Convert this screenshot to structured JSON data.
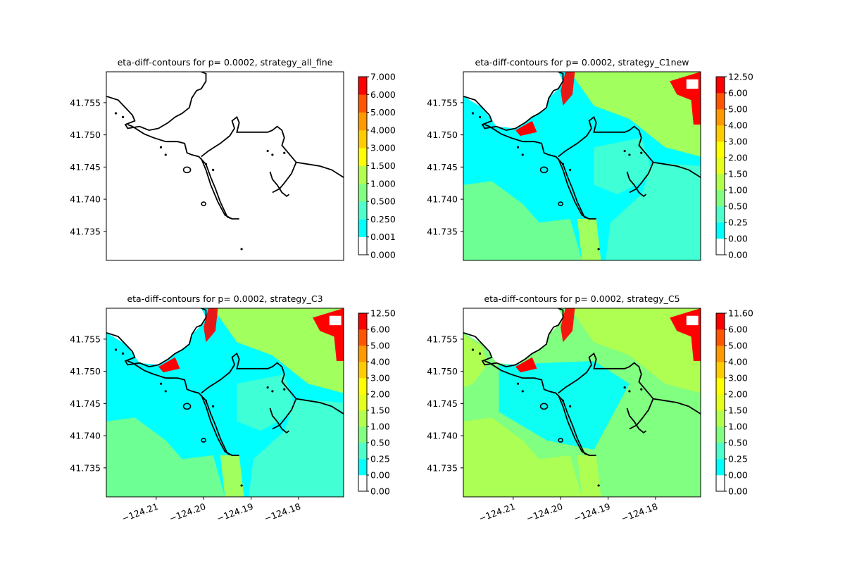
{
  "figure": {
    "background": "#ffffff",
    "coast_color": "#000000",
    "axes_color": "#000000"
  },
  "chart_data": [
    {
      "type": "heatmap",
      "title": "eta-diff-contours for p= 0.0002, strategy_all_fine",
      "xlim": [
        -124.2205,
        -124.1705
      ],
      "ylim": [
        41.7305,
        41.7598
      ],
      "yticks": [
        41.735,
        41.74,
        41.745,
        41.75,
        41.755
      ],
      "ytick_labels": [
        "41.735",
        "41.740",
        "41.745",
        "41.750",
        "41.755"
      ],
      "xticks": [],
      "xtick_labels": [],
      "fill": "none",
      "colorbar": {
        "labels": [
          "0.000",
          "0.001",
          "0.250",
          "0.500",
          "1.000",
          "1.500",
          "3.000",
          "4.000",
          "5.000",
          "6.000",
          "7.000"
        ],
        "colors": [
          "#ffffff",
          "#00ffff",
          "#4dffcc",
          "#80ff80",
          "#b3ff4d",
          "#ffff00",
          "#ffcc00",
          "#ff9900",
          "#ff5500",
          "#ff0000"
        ]
      }
    },
    {
      "type": "heatmap",
      "title": "eta-diff-contours for p= 0.0002, strategy_C1new",
      "xlim": [
        -124.2205,
        -124.1705
      ],
      "ylim": [
        41.7305,
        41.7598
      ],
      "yticks": [
        41.735,
        41.74,
        41.745,
        41.75,
        41.755
      ],
      "ytick_labels": [
        "41.735",
        "41.740",
        "41.745",
        "41.750",
        "41.755"
      ],
      "xticks": [],
      "xtick_labels": [],
      "fill": "c1",
      "colorbar": {
        "labels": [
          "0.00",
          "0.00",
          "0.25",
          "0.50",
          "1.00",
          "1.50",
          "2.00",
          "3.00",
          "4.00",
          "5.00",
          "6.00",
          "12.50"
        ],
        "colors": [
          "#ffffff",
          "#00ffff",
          "#4dffcc",
          "#80ff80",
          "#b3ff4d",
          "#e6ff1a",
          "#ffff00",
          "#ffcc00",
          "#ff9900",
          "#ff5500",
          "#ff0000"
        ]
      }
    },
    {
      "type": "heatmap",
      "title": "eta-diff-contours for p= 0.0002, strategy_C3",
      "xlim": [
        -124.2205,
        -124.1705
      ],
      "ylim": [
        41.7305,
        41.7598
      ],
      "yticks": [
        41.735,
        41.74,
        41.745,
        41.75,
        41.755
      ],
      "ytick_labels": [
        "41.735",
        "41.740",
        "41.745",
        "41.750",
        "41.755"
      ],
      "xticks": [
        -124.21,
        -124.2,
        -124.19,
        -124.18
      ],
      "xtick_labels": [
        "−124.21",
        "−124.20",
        "−124.19",
        "−124.18"
      ],
      "fill": "c3",
      "colorbar": {
        "labels": [
          "0.00",
          "0.00",
          "0.25",
          "0.50",
          "1.00",
          "1.50",
          "2.00",
          "3.00",
          "4.00",
          "5.00",
          "6.00",
          "12.50"
        ],
        "colors": [
          "#ffffff",
          "#00ffff",
          "#4dffcc",
          "#80ff80",
          "#b3ff4d",
          "#e6ff1a",
          "#ffff00",
          "#ffcc00",
          "#ff9900",
          "#ff5500",
          "#ff0000"
        ]
      }
    },
    {
      "type": "heatmap",
      "title": "eta-diff-contours for p= 0.0002, strategy_C5",
      "xlim": [
        -124.2205,
        -124.1705
      ],
      "ylim": [
        41.7305,
        41.7598
      ],
      "yticks": [
        41.735,
        41.74,
        41.745,
        41.75,
        41.755
      ],
      "ytick_labels": [
        "41.735",
        "41.740",
        "41.745",
        "41.750",
        "41.755"
      ],
      "xticks": [
        -124.21,
        -124.2,
        -124.19,
        -124.18
      ],
      "xtick_labels": [
        "−124.21",
        "−124.20",
        "−124.19",
        "−124.18"
      ],
      "fill": "c5",
      "colorbar": {
        "labels": [
          "0.00",
          "0.00",
          "0.25",
          "0.50",
          "1.00",
          "1.50",
          "2.00",
          "3.00",
          "4.00",
          "5.00",
          "6.00",
          "11.60"
        ],
        "colors": [
          "#ffffff",
          "#00ffff",
          "#4dffcc",
          "#80ff80",
          "#b3ff4d",
          "#e6ff1a",
          "#ffff00",
          "#ffcc00",
          "#ff9900",
          "#ff5500",
          "#ff0000"
        ]
      }
    }
  ]
}
